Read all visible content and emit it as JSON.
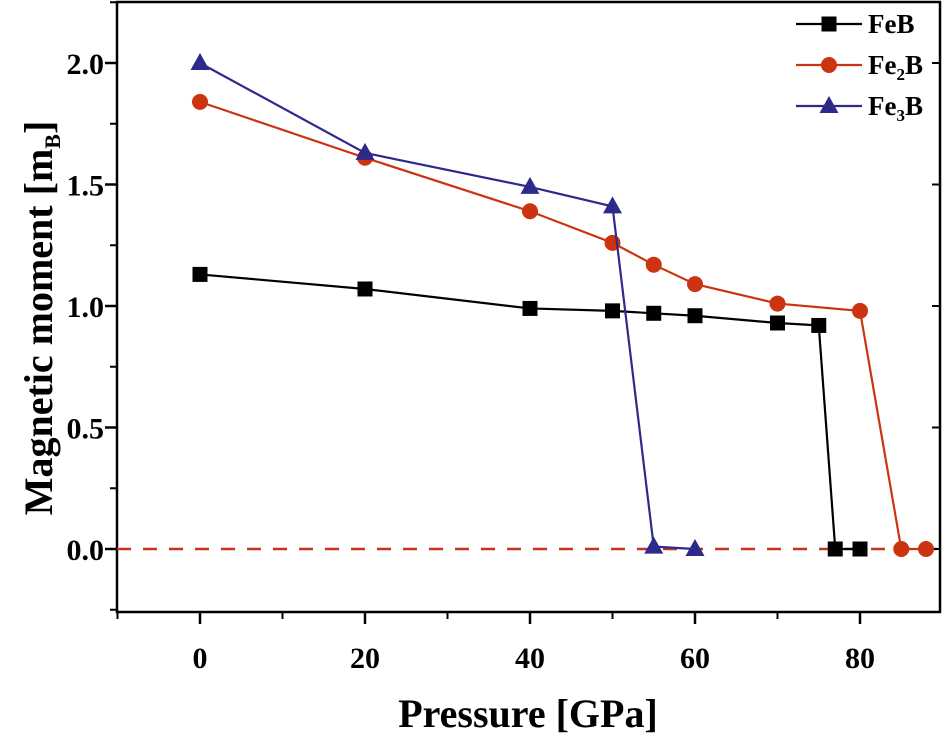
{
  "chart_data": {
    "type": "line",
    "title": "",
    "xlabel": "Pressure [GPa]",
    "ylabel": "Magnetic moment [m",
    "ylabel_sub": "B",
    "ylabel_close": "]",
    "xlim": [
      -10,
      90
    ],
    "ylim": [
      -0.25,
      2.25
    ],
    "xticks": [
      0,
      20,
      40,
      60,
      80
    ],
    "xtick_labels": [
      "0",
      "20",
      "40",
      "60",
      "80"
    ],
    "xminor": [
      -10,
      10,
      30,
      50,
      70,
      90
    ],
    "yticks": [
      0.0,
      0.5,
      1.0,
      1.5,
      2.0
    ],
    "ytick_labels": [
      "0.0",
      "0.5",
      "1.0",
      "1.5",
      "2.0"
    ],
    "yminor": [
      -0.25,
      0.25,
      0.75,
      1.25,
      1.75,
      2.25
    ],
    "grid": false,
    "legend_position": "top-right",
    "reference_line": {
      "y": 0,
      "style": "dashed",
      "color": "#c8321e"
    },
    "series": [
      {
        "name": "FeB",
        "label_main": "FeB",
        "label_sub": "",
        "label_tail": "",
        "marker": "square",
        "color": "#000000",
        "x": [
          0,
          20,
          40,
          50,
          55,
          60,
          70,
          75,
          77,
          80
        ],
        "y": [
          1.13,
          1.07,
          0.99,
          0.98,
          0.97,
          0.96,
          0.93,
          0.92,
          0.0,
          0.0
        ]
      },
      {
        "name": "Fe2B",
        "label_main": "Fe",
        "label_sub": "2",
        "label_tail": "B",
        "marker": "circle",
        "color": "#cc3311",
        "x": [
          0,
          20,
          40,
          50,
          55,
          60,
          70,
          80,
          85,
          88
        ],
        "y": [
          1.84,
          1.61,
          1.39,
          1.26,
          1.17,
          1.09,
          1.01,
          0.98,
          0.0,
          0.0
        ]
      },
      {
        "name": "Fe3B",
        "label_main": "Fe",
        "label_sub": "3",
        "label_tail": "B",
        "marker": "triangle",
        "color": "#2e2a8c",
        "x": [
          0,
          20,
          40,
          50,
          55,
          60
        ],
        "y": [
          2.0,
          1.63,
          1.49,
          1.41,
          0.01,
          0.0
        ]
      }
    ]
  }
}
